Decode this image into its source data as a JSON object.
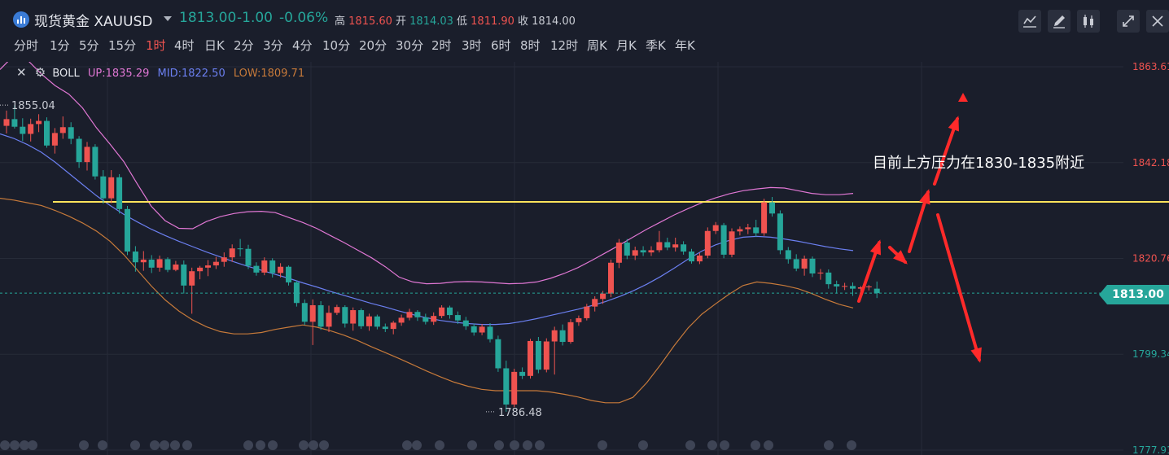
{
  "header": {
    "symbol_name": "现货黄金 XAUUSD",
    "last_price": "1813.00",
    "change": "-1.00",
    "change_pct": "-0.06%",
    "high_label": "高",
    "high_value": "1815.60",
    "open_label": "开",
    "open_value": "1814.03",
    "low_label": "低",
    "low_value": "1811.90",
    "close_label": "收",
    "close_value": "1814.00"
  },
  "timeframes": [
    "分时",
    "1分",
    "5分",
    "15分",
    "1时",
    "4时",
    "日K",
    "2分",
    "3分",
    "4分",
    "10分",
    "20分",
    "30分",
    "2时",
    "3时",
    "6时",
    "8时",
    "12时",
    "周K",
    "月K",
    "季K",
    "年K"
  ],
  "active_timeframe": "1时",
  "toolbar_icons": [
    "line-chart-icon",
    "draw-pen-icon",
    "candle-style-icon",
    "collapse-icon",
    "close-icon"
  ],
  "indicator": {
    "name": "BOLL",
    "up_label": "UP:1835.29",
    "mid_label": "MID:1822.50",
    "low_label": "LOW:1809.71"
  },
  "annotation": "目前上方压力在1830-1835附近",
  "colors": {
    "up": "#ef5350",
    "down": "#26a69a",
    "boll_up": "#e077d4",
    "boll_mid": "#6b7ff0",
    "boll_low": "#c77a3a",
    "resistance": "#ffe45c",
    "arrows": "#ff2a2a",
    "background": "#1a1e2b"
  },
  "chart_data": {
    "type": "candlestick",
    "title": "",
    "xlabel": "",
    "ylabel": "",
    "ylim": [
      1777.91,
      1863.61
    ],
    "y_ticks": [
      1863.61,
      1842.18,
      1820.76,
      1799.34,
      1777.91
    ],
    "current_price": 1813.0,
    "max_label": "1855.04",
    "min_label": "1786.48",
    "resistance_level": 1833.4,
    "candles": [
      [
        1850.4,
        1853.8,
        1848.7,
        1851.9
      ],
      [
        1851.9,
        1855.0,
        1849.8,
        1850.2
      ],
      [
        1850.2,
        1852.1,
        1847.0,
        1848.6
      ],
      [
        1848.6,
        1852.0,
        1846.9,
        1850.8
      ],
      [
        1850.8,
        1853.0,
        1849.0,
        1851.5
      ],
      [
        1851.5,
        1852.3,
        1845.5,
        1846.0
      ],
      [
        1846.0,
        1849.9,
        1844.2,
        1848.8
      ],
      [
        1848.8,
        1852.5,
        1847.5,
        1850.1
      ],
      [
        1850.1,
        1851.2,
        1846.3,
        1847.5
      ],
      [
        1847.5,
        1848.1,
        1841.0,
        1842.3
      ],
      [
        1842.3,
        1846.8,
        1840.4,
        1845.7
      ],
      [
        1845.7,
        1846.3,
        1838.4,
        1839.1
      ],
      [
        1839.1,
        1840.5,
        1833.0,
        1834.2
      ],
      [
        1834.2,
        1840.5,
        1833.1,
        1838.9
      ],
      [
        1838.9,
        1839.6,
        1830.8,
        1831.8
      ],
      [
        1831.8,
        1832.5,
        1821.5,
        1822.3
      ],
      [
        1822.3,
        1823.5,
        1817.8,
        1819.9
      ],
      [
        1819.9,
        1822.4,
        1818.0,
        1820.5
      ],
      [
        1820.5,
        1821.5,
        1817.5,
        1818.7
      ],
      [
        1818.7,
        1821.4,
        1817.8,
        1820.6
      ],
      [
        1820.6,
        1821.0,
        1817.7,
        1818.2
      ],
      [
        1818.2,
        1820.2,
        1817.9,
        1819.4
      ],
      [
        1819.4,
        1820.3,
        1812.9,
        1814.7
      ],
      [
        1814.7,
        1818.7,
        1808.4,
        1817.9
      ],
      [
        1817.9,
        1819.1,
        1816.1,
        1818.7
      ],
      [
        1818.7,
        1820.4,
        1816.8,
        1819.2
      ],
      [
        1819.2,
        1821.1,
        1818.4,
        1820.0
      ],
      [
        1820.0,
        1822.1,
        1818.9,
        1821.0
      ],
      [
        1821.0,
        1823.9,
        1820.0,
        1823.0
      ],
      [
        1823.0,
        1825.1,
        1821.2,
        1822.9
      ],
      [
        1822.9,
        1823.8,
        1818.4,
        1819.1
      ],
      [
        1819.1,
        1819.9,
        1816.9,
        1817.6
      ],
      [
        1817.6,
        1821.0,
        1817.0,
        1820.3
      ],
      [
        1820.3,
        1820.8,
        1816.5,
        1817.5
      ],
      [
        1817.5,
        1819.7,
        1816.5,
        1818.9
      ],
      [
        1818.9,
        1819.2,
        1814.7,
        1815.4
      ],
      [
        1815.4,
        1815.8,
        1810.0,
        1810.8
      ],
      [
        1810.8,
        1811.6,
        1805.9,
        1806.6
      ],
      [
        1806.6,
        1811.6,
        1801.4,
        1810.3
      ],
      [
        1810.3,
        1811.2,
        1804.8,
        1805.5
      ],
      [
        1805.5,
        1810.2,
        1804.3,
        1808.6
      ],
      [
        1808.6,
        1810.4,
        1808.1,
        1809.9
      ],
      [
        1809.9,
        1810.3,
        1805.3,
        1806.2
      ],
      [
        1806.2,
        1809.8,
        1804.6,
        1809.2
      ],
      [
        1809.2,
        1809.6,
        1805.0,
        1805.6
      ],
      [
        1805.6,
        1808.4,
        1804.6,
        1807.8
      ],
      [
        1807.8,
        1808.2,
        1804.9,
        1805.5
      ],
      [
        1805.5,
        1806.2,
        1804.3,
        1805.0
      ],
      [
        1805.0,
        1806.8,
        1803.8,
        1806.4
      ],
      [
        1806.4,
        1808.2,
        1805.7,
        1807.5
      ],
      [
        1807.5,
        1809.5,
        1806.9,
        1808.8
      ],
      [
        1808.8,
        1809.2,
        1806.8,
        1807.6
      ],
      [
        1807.6,
        1808.4,
        1806.0,
        1806.6
      ],
      [
        1806.6,
        1808.7,
        1805.9,
        1807.9
      ],
      [
        1807.9,
        1810.3,
        1807.4,
        1809.8
      ],
      [
        1809.8,
        1810.2,
        1807.3,
        1808.1
      ],
      [
        1808.1,
        1808.9,
        1806.1,
        1806.9
      ],
      [
        1806.9,
        1807.7,
        1804.8,
        1805.6
      ],
      [
        1805.6,
        1806.2,
        1803.5,
        1804.2
      ],
      [
        1804.2,
        1806.1,
        1803.6,
        1805.5
      ],
      [
        1805.5,
        1806.3,
        1802.0,
        1802.7
      ],
      [
        1802.7,
        1803.5,
        1795.4,
        1796.2
      ],
      [
        1796.2,
        1797.9,
        1786.5,
        1788.1
      ],
      [
        1788.1,
        1796.1,
        1787.5,
        1795.4
      ],
      [
        1795.4,
        1796.4,
        1793.8,
        1794.5
      ],
      [
        1794.5,
        1802.8,
        1793.9,
        1802.3
      ],
      [
        1802.3,
        1803.2,
        1795.1,
        1795.9
      ],
      [
        1795.9,
        1802.9,
        1795.3,
        1802.2
      ],
      [
        1802.2,
        1805.5,
        1794.8,
        1804.7
      ],
      [
        1804.7,
        1806.0,
        1801.3,
        1802.1
      ],
      [
        1802.1,
        1807.2,
        1801.7,
        1806.5
      ],
      [
        1806.5,
        1808.0,
        1805.7,
        1807.4
      ],
      [
        1807.4,
        1810.6,
        1806.9,
        1810.0
      ],
      [
        1810.0,
        1812.3,
        1808.9,
        1811.7
      ],
      [
        1811.7,
        1813.5,
        1810.6,
        1812.9
      ],
      [
        1812.9,
        1820.5,
        1812.1,
        1819.8
      ],
      [
        1819.8,
        1825.1,
        1818.6,
        1824.3
      ],
      [
        1824.3,
        1825.1,
        1820.6,
        1821.4
      ],
      [
        1821.4,
        1823.4,
        1820.4,
        1822.6
      ],
      [
        1822.6,
        1823.5,
        1821.3,
        1822.1
      ],
      [
        1822.1,
        1823.5,
        1821.3,
        1822.6
      ],
      [
        1822.6,
        1826.9,
        1822.1,
        1824.4
      ],
      [
        1824.4,
        1825.4,
        1822.6,
        1823.2
      ],
      [
        1823.2,
        1825.4,
        1822.3,
        1823.9
      ],
      [
        1823.9,
        1824.6,
        1821.6,
        1822.3
      ],
      [
        1822.3,
        1822.9,
        1819.6,
        1820.1
      ],
      [
        1820.1,
        1822.0,
        1819.5,
        1821.4
      ],
      [
        1821.4,
        1827.7,
        1820.8,
        1826.9
      ],
      [
        1826.9,
        1828.9,
        1826.2,
        1828.2
      ],
      [
        1828.2,
        1828.7,
        1820.8,
        1821.6
      ],
      [
        1821.6,
        1827.5,
        1821.0,
        1826.8
      ],
      [
        1826.8,
        1827.9,
        1825.9,
        1827.3
      ],
      [
        1827.3,
        1828.5,
        1826.2,
        1827.7
      ],
      [
        1827.7,
        1829.4,
        1825.6,
        1826.4
      ],
      [
        1826.4,
        1834.1,
        1825.8,
        1833.3
      ],
      [
        1833.3,
        1834.5,
        1830.1,
        1830.8
      ],
      [
        1830.8,
        1831.5,
        1821.7,
        1822.6
      ],
      [
        1822.6,
        1823.3,
        1819.6,
        1820.6
      ],
      [
        1820.6,
        1821.7,
        1817.9,
        1818.5
      ],
      [
        1818.5,
        1821.4,
        1816.9,
        1820.7
      ],
      [
        1820.7,
        1821.2,
        1816.6,
        1817.4
      ],
      [
        1817.4,
        1818.4,
        1816.0,
        1817.6
      ],
      [
        1817.6,
        1818.3,
        1814.0,
        1815.0
      ],
      [
        1815.0,
        1815.8,
        1812.9,
        1814.5
      ],
      [
        1814.5,
        1815.3,
        1813.7,
        1814.6
      ],
      [
        1814.6,
        1815.4,
        1812.4,
        1814.0
      ],
      [
        1814.0,
        1814.6,
        1813.2,
        1814.3
      ],
      [
        1814.3,
        1814.8,
        1813.6,
        1814.5
      ],
      [
        1814.0,
        1815.6,
        1811.9,
        1813.0
      ]
    ],
    "boll_up": [
      1863.0,
      1866.1,
      1865.1,
      1862.0,
      1859.4,
      1857.5,
      1854.4,
      1850.0,
      1846.3,
      1842.4,
      1837.3,
      1832.4,
      1829.2,
      1827.5,
      1827.4,
      1829.0,
      1830.1,
      1830.8,
      1831.2,
      1831.3,
      1831.0,
      1829.9,
      1828.8,
      1827.5,
      1825.9,
      1824.3,
      1822.6,
      1820.9,
      1818.9,
      1816.6,
      1815.5,
      1815.1,
      1815.2,
      1815.5,
      1815.6,
      1815.5,
      1815.3,
      1815.1,
      1815.2,
      1815.5,
      1816.3,
      1817.4,
      1818.7,
      1820.3,
      1822.0,
      1823.7,
      1825.5,
      1827.3,
      1828.9,
      1830.5,
      1831.9,
      1833.2,
      1834.3,
      1835.2,
      1835.9,
      1836.3,
      1836.6,
      1836.5,
      1835.9,
      1835.3,
      1835.0,
      1835.0,
      1835.3
    ],
    "boll_mid": [
      1848.6,
      1847.6,
      1846.2,
      1844.5,
      1842.3,
      1839.8,
      1837.3,
      1834.8,
      1832.6,
      1830.6,
      1828.9,
      1827.3,
      1825.9,
      1824.6,
      1823.4,
      1822.2,
      1821.1,
      1820.0,
      1819.0,
      1818.1,
      1817.2,
      1816.3,
      1815.3,
      1814.4,
      1813.4,
      1812.5,
      1811.6,
      1810.7,
      1809.9,
      1809.0,
      1808.2,
      1807.5,
      1806.9,
      1806.5,
      1806.2,
      1806.0,
      1806.0,
      1806.2,
      1806.7,
      1807.3,
      1808.0,
      1808.7,
      1809.4,
      1810.2,
      1811.1,
      1812.2,
      1813.5,
      1815.0,
      1816.7,
      1818.6,
      1820.6,
      1822.4,
      1823.8,
      1824.8,
      1825.5,
      1825.7,
      1825.5,
      1825.1,
      1824.6,
      1824.0,
      1823.4,
      1822.9,
      1822.5
    ],
    "boll_low": [
      1834.2,
      1833.8,
      1833.2,
      1832.6,
      1831.5,
      1830.2,
      1828.7,
      1826.9,
      1824.6,
      1821.6,
      1818.1,
      1814.6,
      1811.5,
      1809.0,
      1807.0,
      1805.5,
      1804.4,
      1803.9,
      1803.9,
      1804.2,
      1804.9,
      1805.4,
      1805.9,
      1805.4,
      1804.6,
      1803.6,
      1802.4,
      1801.0,
      1799.7,
      1798.4,
      1797.0,
      1795.6,
      1794.3,
      1793.1,
      1792.2,
      1791.5,
      1791.2,
      1791.2,
      1791.2,
      1791.2,
      1790.9,
      1790.4,
      1789.8,
      1789.0,
      1788.5,
      1788.5,
      1789.7,
      1793.0,
      1797.0,
      1801.3,
      1805.2,
      1808.3,
      1810.6,
      1812.8,
      1814.7,
      1815.5,
      1815.2,
      1814.7,
      1814.0,
      1812.9,
      1811.6,
      1810.5,
      1809.7
    ]
  }
}
